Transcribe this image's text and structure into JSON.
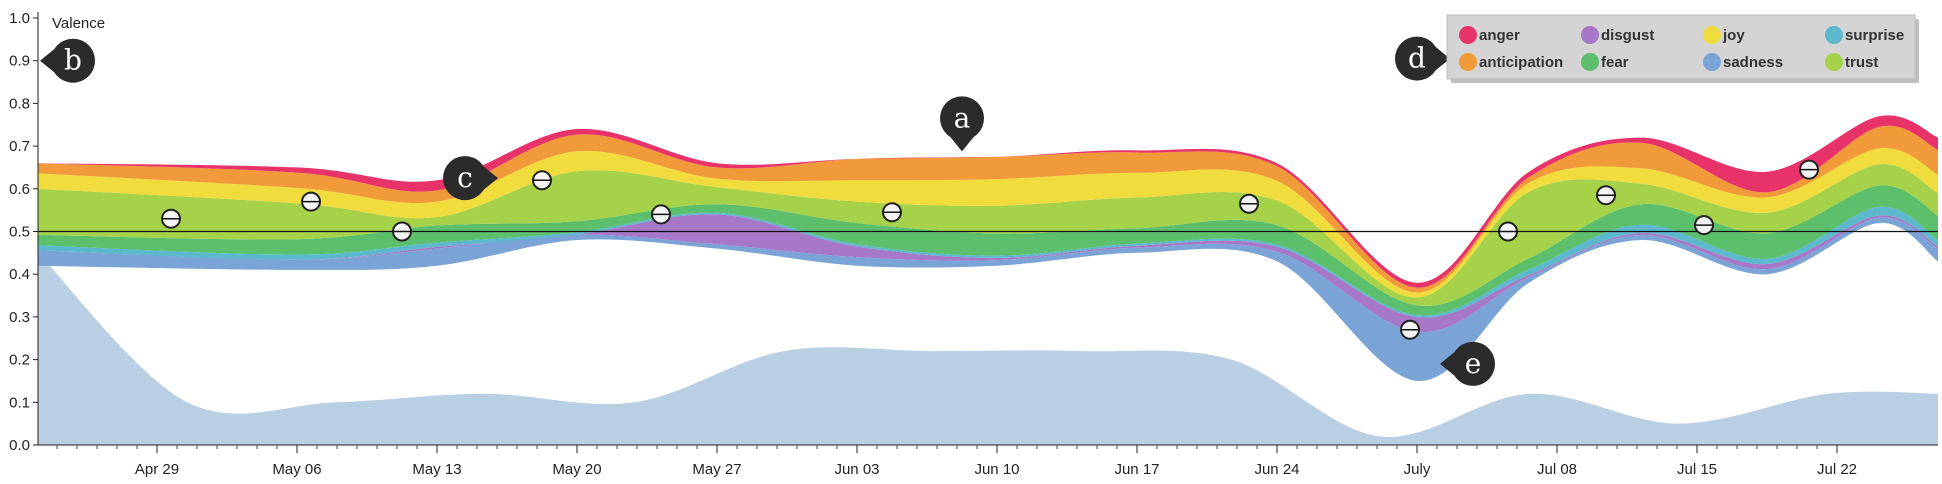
{
  "chart_data": {
    "type": "area",
    "ylabel": "Valence",
    "ylim": [
      0,
      1
    ],
    "yticks": [
      "0.0",
      "0.1",
      "0.2",
      "0.3",
      "0.4",
      "0.5",
      "0.6",
      "0.7",
      "0.8",
      "0.9",
      "1.0"
    ],
    "xticks": [
      "Apr 29",
      "May 06",
      "May 13",
      "May 20",
      "May 27",
      "Jun 03",
      "Jun 10",
      "Jun 17",
      "Jun 24",
      "July",
      "Jul 08",
      "Jul 15",
      "Jul 22"
    ],
    "reference_line": 0.5,
    "legend": [
      {
        "name": "anger",
        "color": "#e8336a"
      },
      {
        "name": "anticipation",
        "color": "#f09a3a"
      },
      {
        "name": "disgust",
        "color": "#a878c8"
      },
      {
        "name": "fear",
        "color": "#5cbf6b"
      },
      {
        "name": "joy",
        "color": "#f1dc3e"
      },
      {
        "name": "sadness",
        "color": "#7aa3d6"
      },
      {
        "name": "surprise",
        "color": "#5cb8cc"
      },
      {
        "name": "trust",
        "color": "#a6d24a"
      }
    ],
    "background_area_color": "#b9cfe3",
    "background_area": [
      0.45,
      0.1,
      0.1,
      0.12,
      0.1,
      0.22,
      0.22,
      0.22,
      0.2,
      0.02,
      0.12,
      0.05,
      0.12,
      0.12
    ],
    "stream_x": [
      -0.85,
      1.0,
      2.0,
      3.0,
      4.0,
      5.0,
      6.0,
      7.0,
      8.0,
      9.0,
      9.8,
      10.6,
      11.5,
      12.3,
      13.0
    ],
    "stream_bottom": [
      0.42,
      0.41,
      0.42,
      0.48,
      0.46,
      0.42,
      0.42,
      0.45,
      0.43,
      0.15,
      0.38,
      0.48,
      0.4,
      0.52,
      0.43
    ],
    "stream_top": [
      0.66,
      0.65,
      0.62,
      0.74,
      0.66,
      0.67,
      0.68,
      0.69,
      0.66,
      0.38,
      0.64,
      0.72,
      0.64,
      0.77,
      0.72
    ],
    "stream_layers": [
      {
        "name": "sadness",
        "color": "#7aa3d6",
        "share": [
          0.15,
          0.1,
          0.2,
          0.05,
          0.05,
          0.08,
          0.05,
          0.05,
          0.1,
          0.5,
          0.05,
          0.05,
          0.05,
          0.05,
          0.1
        ]
      },
      {
        "name": "disgust",
        "color": "#a878c8",
        "share": [
          0.0,
          0.0,
          0.02,
          0.0,
          0.35,
          0.1,
          0.02,
          0.02,
          0.05,
          0.15,
          0.02,
          0.02,
          0.05,
          0.02,
          0.02
        ]
      },
      {
        "name": "surprise",
        "color": "#5cb8cc",
        "share": [
          0.05,
          0.05,
          0.05,
          0.02,
          0.02,
          0.02,
          0.02,
          0.02,
          0.02,
          0.02,
          0.05,
          0.08,
          0.05,
          0.08,
          0.05
        ]
      },
      {
        "name": "fear",
        "color": "#5cbf6b",
        "share": [
          0.1,
          0.15,
          0.2,
          0.1,
          0.1,
          0.2,
          0.2,
          0.15,
          0.2,
          0.1,
          0.1,
          0.2,
          0.25,
          0.2,
          0.2
        ]
      },
      {
        "name": "trust",
        "color": "#a6d24a",
        "share": [
          0.45,
          0.35,
          0.1,
          0.45,
          0.2,
          0.2,
          0.25,
          0.3,
          0.25,
          0.08,
          0.6,
          0.2,
          0.2,
          0.2,
          0.18
        ]
      },
      {
        "name": "joy",
        "color": "#f1dc3e",
        "share": [
          0.15,
          0.15,
          0.18,
          0.18,
          0.1,
          0.2,
          0.24,
          0.24,
          0.2,
          0.05,
          0.08,
          0.15,
          0.15,
          0.15,
          0.15
        ]
      },
      {
        "name": "anticipation",
        "color": "#f09a3a",
        "share": [
          0.1,
          0.15,
          0.13,
          0.15,
          0.13,
          0.2,
          0.2,
          0.2,
          0.15,
          0.05,
          0.05,
          0.25,
          0.05,
          0.2,
          0.2
        ]
      },
      {
        "name": "anger",
        "color": "#e8336a",
        "share": [
          0.0,
          0.05,
          0.12,
          0.05,
          0.05,
          0.0,
          0.0,
          0.02,
          0.03,
          0.05,
          0.05,
          0.05,
          0.2,
          0.1,
          0.1
        ]
      }
    ],
    "points": [
      {
        "x": 0.1,
        "y": 0.53
      },
      {
        "x": 1.1,
        "y": 0.57
      },
      {
        "x": 1.75,
        "y": 0.5
      },
      {
        "x": 2.75,
        "y": 0.62
      },
      {
        "x": 3.6,
        "y": 0.54
      },
      {
        "x": 5.25,
        "y": 0.545
      },
      {
        "x": 7.8,
        "y": 0.565
      },
      {
        "x": 8.95,
        "y": 0.27
      },
      {
        "x": 9.65,
        "y": 0.5
      },
      {
        "x": 10.35,
        "y": 0.585
      },
      {
        "x": 11.05,
        "y": 0.515
      },
      {
        "x": 11.8,
        "y": 0.645
      }
    ],
    "callouts": [
      {
        "label": "a",
        "x": 5.75,
        "y": 0.765,
        "pointer": "down"
      },
      {
        "label": "b",
        "x": -0.6,
        "y": 0.9,
        "pointer": "left"
      },
      {
        "label": "c",
        "x": 2.2,
        "y": 0.625,
        "pointer": "right"
      },
      {
        "label": "d",
        "x": 9.0,
        "y": 0.905,
        "pointer": "right"
      },
      {
        "label": "e",
        "x": 9.4,
        "y": 0.19,
        "pointer": "left"
      }
    ]
  }
}
